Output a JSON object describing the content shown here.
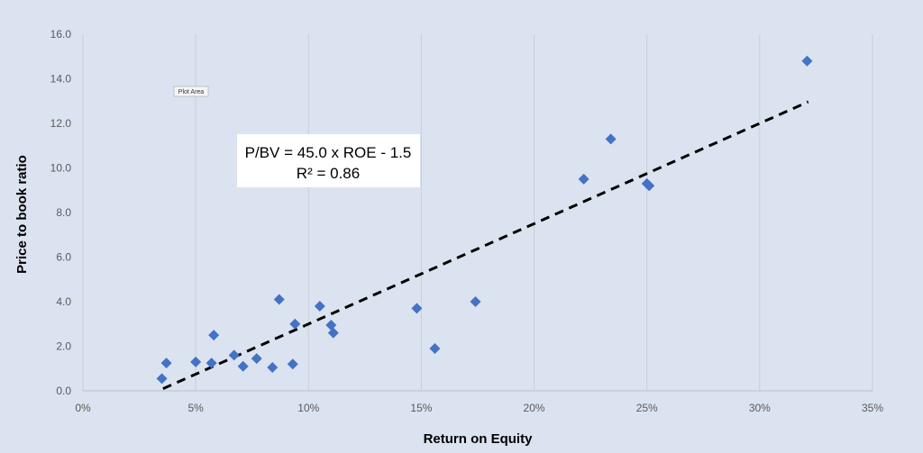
{
  "chart_data": {
    "type": "scatter",
    "xlabel": "Return on Equity",
    "ylabel": "Price to book ratio",
    "xlim": [
      0,
      0.35
    ],
    "ylim": [
      0,
      16
    ],
    "x_ticks": [
      0,
      0.05,
      0.1,
      0.15,
      0.2,
      0.25,
      0.3,
      0.35
    ],
    "x_tick_labels": [
      "0%",
      "5%",
      "10%",
      "15%",
      "20%",
      "25%",
      "30%",
      "35%"
    ],
    "y_ticks": [
      0,
      2,
      4,
      6,
      8,
      10,
      12,
      14,
      16
    ],
    "y_tick_labels": [
      "0.0",
      "2.0",
      "4.0",
      "6.0",
      "8.0",
      "10.0",
      "12.0",
      "14.0",
      "16.0"
    ],
    "grid": "vertical",
    "marker_color": "#4472c4",
    "trendline_color": "#000000",
    "points": [
      {
        "x": 0.035,
        "y": 0.55
      },
      {
        "x": 0.037,
        "y": 1.25
      },
      {
        "x": 0.05,
        "y": 1.3
      },
      {
        "x": 0.057,
        "y": 1.25
      },
      {
        "x": 0.058,
        "y": 2.5
      },
      {
        "x": 0.067,
        "y": 1.6
      },
      {
        "x": 0.071,
        "y": 1.1
      },
      {
        "x": 0.077,
        "y": 1.45
      },
      {
        "x": 0.084,
        "y": 1.05
      },
      {
        "x": 0.087,
        "y": 4.1
      },
      {
        "x": 0.093,
        "y": 1.2
      },
      {
        "x": 0.094,
        "y": 3.0
      },
      {
        "x": 0.105,
        "y": 3.8
      },
      {
        "x": 0.11,
        "y": 2.95
      },
      {
        "x": 0.111,
        "y": 2.6
      },
      {
        "x": 0.148,
        "y": 3.7
      },
      {
        "x": 0.156,
        "y": 1.9
      },
      {
        "x": 0.174,
        "y": 4.0
      },
      {
        "x": 0.222,
        "y": 9.5
      },
      {
        "x": 0.234,
        "y": 11.3
      },
      {
        "x": 0.25,
        "y": 9.3
      },
      {
        "x": 0.251,
        "y": 9.2
      },
      {
        "x": 0.321,
        "y": 14.8
      }
    ],
    "trendline": {
      "slope": 45.0,
      "intercept": -1.5,
      "x_range": [
        0.0355,
        0.3215
      ],
      "style": "dashed"
    },
    "annotation_lines": [
      "P/BV = 45.0 x ROE - 1.5",
      "R² = 0.86"
    ],
    "plot_area_tag": "Plot Area"
  }
}
